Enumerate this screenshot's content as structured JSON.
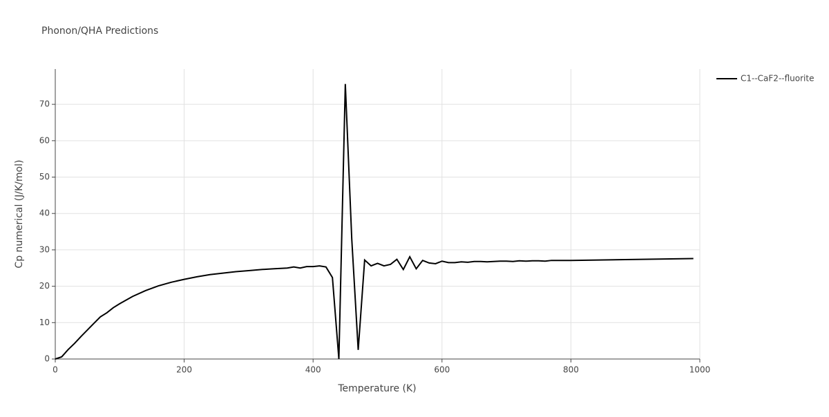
{
  "chart_data": {
    "type": "line",
    "title": "Phonon/QHA Predictions",
    "xlabel": "Temperature (K)",
    "ylabel": "Cp numerical (J/K/mol)",
    "x": [
      0,
      10,
      20,
      30,
      40,
      50,
      60,
      70,
      80,
      90,
      100,
      120,
      140,
      160,
      180,
      200,
      220,
      240,
      260,
      280,
      300,
      320,
      340,
      360,
      370,
      380,
      390,
      400,
      410,
      420,
      430,
      440,
      450,
      460,
      470,
      480,
      490,
      500,
      510,
      520,
      530,
      540,
      550,
      560,
      570,
      580,
      590,
      600,
      610,
      620,
      630,
      640,
      650,
      660,
      670,
      680,
      690,
      700,
      710,
      720,
      730,
      740,
      750,
      760,
      770,
      780,
      790,
      800,
      990
    ],
    "series": [
      {
        "name": "C1--CaF2--fluorite",
        "color": "#000000",
        "values": [
          0,
          0.6,
          2.6,
          4.3,
          6.2,
          8.0,
          9.8,
          11.6,
          12.7,
          14.1,
          15.2,
          17.2,
          18.8,
          20.1,
          21.1,
          21.9,
          22.6,
          23.2,
          23.6,
          24.0,
          24.3,
          24.6,
          24.8,
          25.0,
          25.3,
          25.0,
          25.4,
          25.4,
          25.6,
          25.3,
          22.4,
          0,
          75.6,
          33,
          2.5,
          27.2,
          25.6,
          26.3,
          25.6,
          26.0,
          27.4,
          24.6,
          28.1,
          24.8,
          27.1,
          26.4,
          26.2,
          26.9,
          26.5,
          26.5,
          26.7,
          26.6,
          26.8,
          26.8,
          26.7,
          26.8,
          26.9,
          26.9,
          26.8,
          27.0,
          26.9,
          27.0,
          27.0,
          26.9,
          27.1,
          27.1,
          27.1,
          27.1,
          27.6
        ]
      }
    ],
    "xlim": [
      0,
      1000
    ],
    "xticks": [
      0,
      200,
      400,
      600,
      800,
      1000
    ],
    "ylim": [
      0,
      79.7
    ],
    "yticks": [
      0,
      10,
      20,
      30,
      40,
      50,
      60,
      70
    ],
    "grid": true,
    "legend": "right"
  }
}
